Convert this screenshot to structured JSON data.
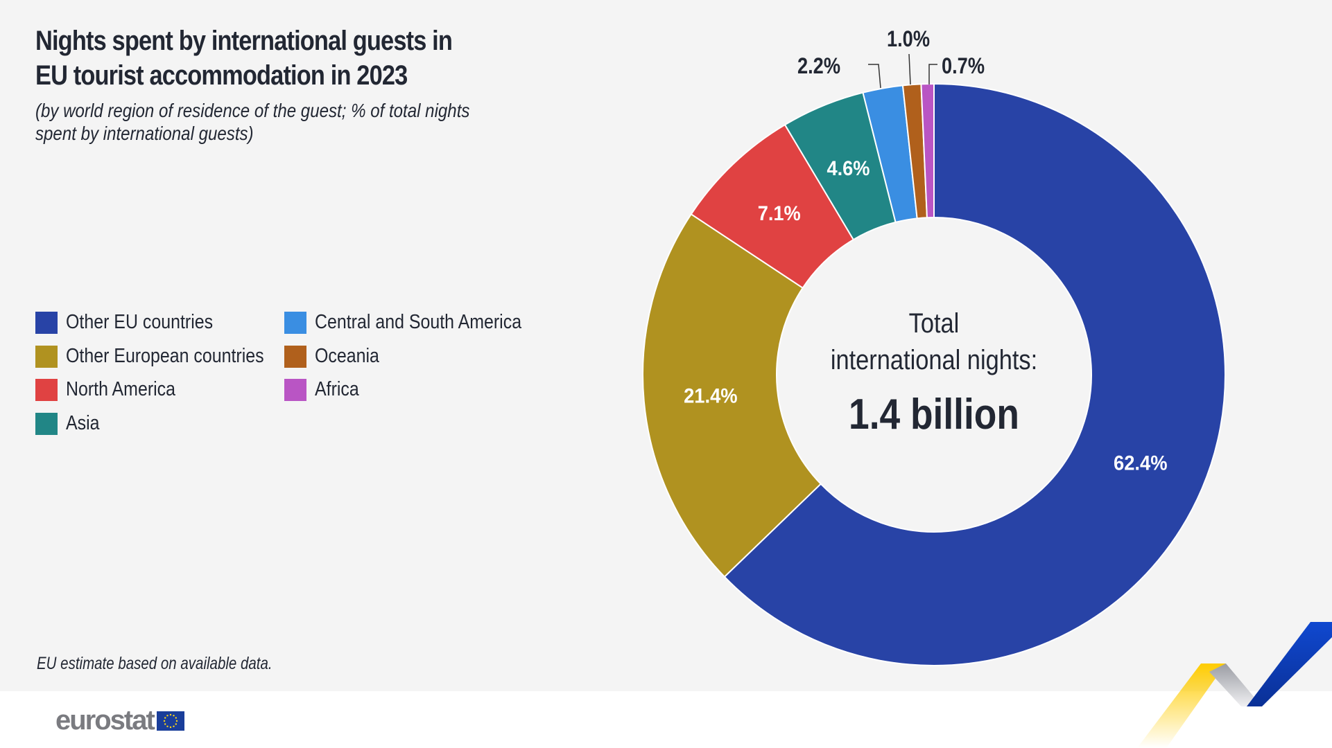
{
  "title_line1": "Nights spent by international guests in",
  "title_line2": "EU tourist accommodation in 2023",
  "subtitle_line1": "(by world region of residence of the guest; % of total nights",
  "subtitle_line2": "spent by international guests)",
  "note": "EU estimate based on available data.",
  "logo": "eurostat",
  "center": {
    "line1": "Total",
    "line2": "international nights:",
    "value": "1.4 billion"
  },
  "chart_data": {
    "type": "pie",
    "donut": true,
    "unit": "%",
    "legend_position": "left",
    "categories": [
      "Other EU countries",
      "Other European countries",
      "North America",
      "Asia",
      "Central and South America",
      "Oceania",
      "Africa"
    ],
    "values": [
      62.4,
      21.4,
      7.1,
      4.6,
      2.2,
      1.0,
      0.7
    ],
    "labels": [
      "62.4%",
      "21.4%",
      "7.1%",
      "4.6%",
      "2.2%",
      "1.0%",
      "0.7%"
    ],
    "colors": [
      "#2843a6",
      "#b09220",
      "#e04242",
      "#218686",
      "#3a8ee2",
      "#b0601c",
      "#b955c4"
    ]
  }
}
